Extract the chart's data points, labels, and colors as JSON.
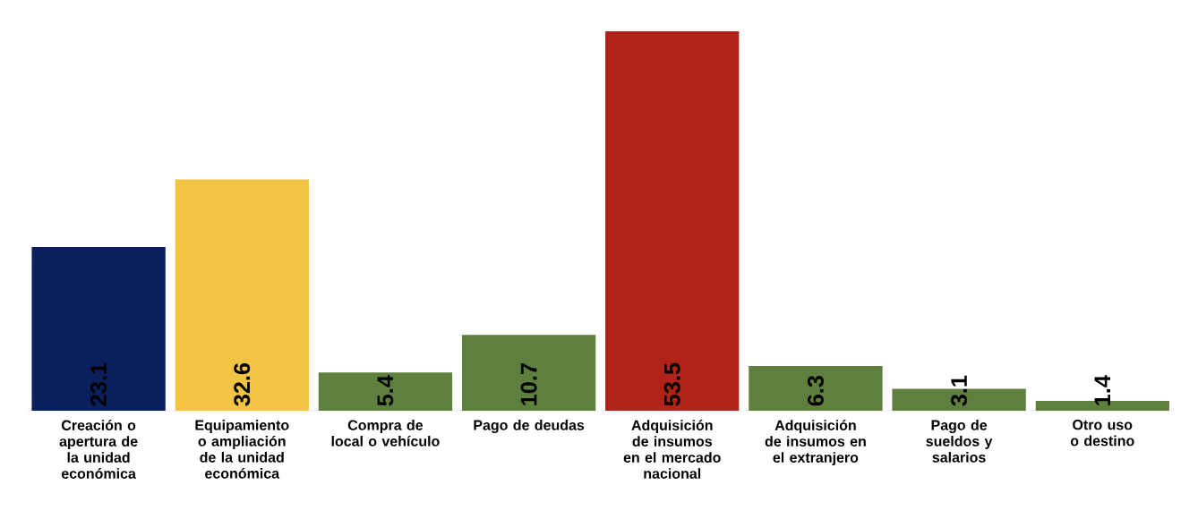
{
  "chart_data": {
    "type": "bar",
    "categories": [
      "Creación o apertura de la unidad económica",
      "Equipamiento o ampliación de la unidad económica",
      "Compra de local o vehículo",
      "Pago de deudas",
      "Adquisición de insumos en el mercado nacional",
      "Adquisición de insumos en el extranjero",
      "Pago de sueldos y salarios",
      "Otro uso o destino"
    ],
    "values": [
      23.1,
      32.6,
      5.4,
      10.7,
      53.5,
      6.3,
      3.1,
      1.4
    ],
    "colors": [
      "#0a1f5c",
      "#f2c443",
      "#5f7f3e",
      "#5f7f3e",
      "#b02318",
      "#5f7f3e",
      "#5f7f3e",
      "#5f7f3e"
    ],
    "data_labels": true
  }
}
